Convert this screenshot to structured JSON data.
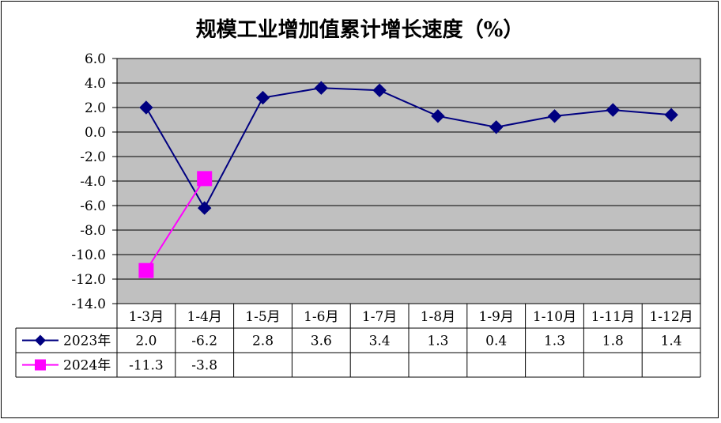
{
  "chart_data": {
    "type": "line",
    "title": "规模工业增加值累计增长速度（%）",
    "xlabel": "",
    "ylabel": "",
    "categories": [
      "1-3月",
      "1-4月",
      "1-5月",
      "1-6月",
      "1-7月",
      "1-8月",
      "1-9月",
      "1-10月",
      "1-11月",
      "1-12月"
    ],
    "ylim": [
      -14.0,
      6.0
    ],
    "yticks": [
      "6.0",
      "4.0",
      "2.0",
      "0.0",
      "-2.0",
      "-4.0",
      "-6.0",
      "-8.0",
      "-10.0",
      "-12.0",
      "-14.0"
    ],
    "grid": true,
    "legend_position": "data table rows below chart",
    "series": [
      {
        "name": "2023年",
        "color": "#000080",
        "marker": "diamond",
        "values": [
          2.0,
          -6.2,
          2.8,
          3.6,
          3.4,
          1.3,
          0.4,
          1.3,
          1.8,
          1.4
        ],
        "labels": [
          "2.0",
          "-6.2",
          "2.8",
          "3.6",
          "3.4",
          "1.3",
          "0.4",
          "1.3",
          "1.8",
          "1.4"
        ]
      },
      {
        "name": "2024年",
        "color": "#ff00ff",
        "marker": "square",
        "values": [
          -11.3,
          -3.8,
          null,
          null,
          null,
          null,
          null,
          null,
          null,
          null
        ],
        "labels": [
          "-11.3",
          "-3.8",
          "",
          "",
          "",
          "",
          "",
          "",
          "",
          ""
        ]
      }
    ],
    "plot_background": "#c0c0c0"
  }
}
